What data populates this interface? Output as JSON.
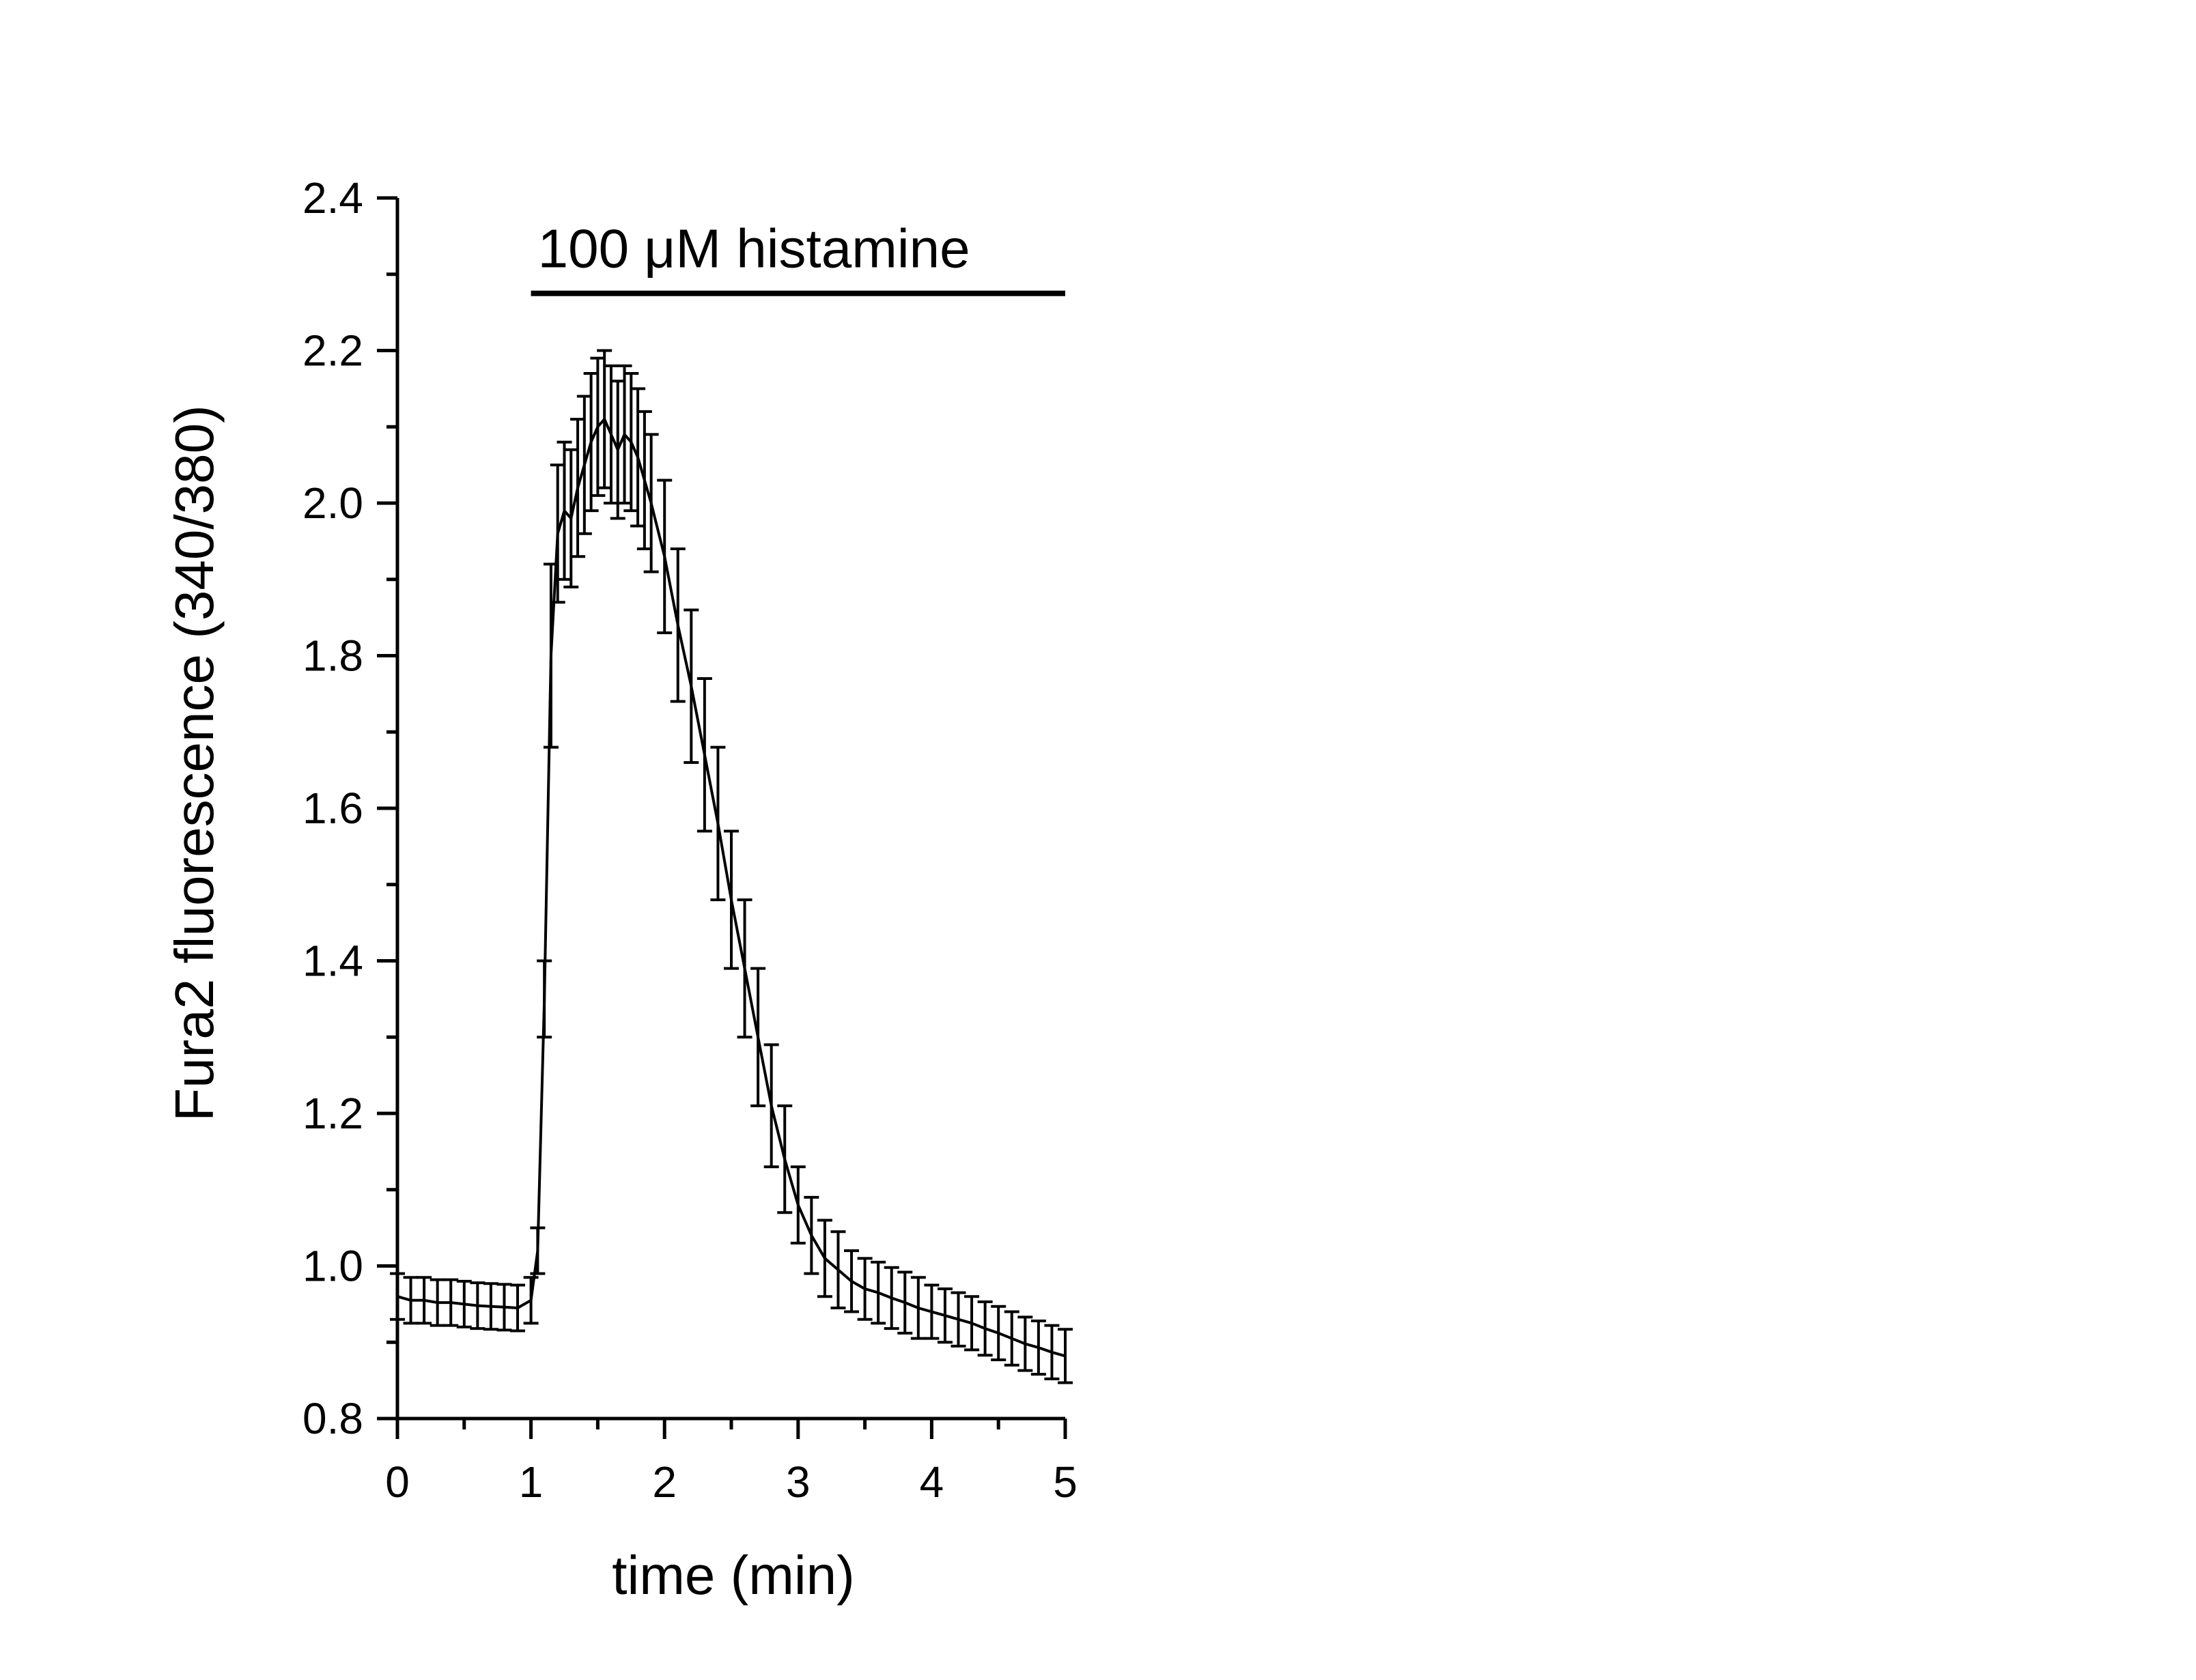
{
  "chart_data": {
    "type": "line",
    "xlabel": "time (min)",
    "ylabel": "Fura2 fluorescence (340/380)",
    "xlim": [
      0,
      5
    ],
    "ylim": [
      0.8,
      2.4
    ],
    "x_ticks": [
      "0",
      "1",
      "2",
      "3",
      "4",
      "5"
    ],
    "y_ticks": [
      "0.8",
      "1.0",
      "1.2",
      "1.4",
      "1.6",
      "1.8",
      "2.0",
      "2.2",
      "2.4"
    ],
    "grid": false,
    "annotation": {
      "text": "100 μM histamine",
      "bar_x": [
        1,
        5
      ],
      "bar_y": 2.275
    },
    "series": [
      {
        "x": [
          0,
          0.1,
          0.2,
          0.3,
          0.4,
          0.5,
          0.6,
          0.7,
          0.8,
          0.9,
          1.0,
          1.05,
          1.1,
          1.15,
          1.2,
          1.25,
          1.3,
          1.35,
          1.4,
          1.45,
          1.5,
          1.55,
          1.6,
          1.65,
          1.7,
          1.75,
          1.8,
          1.85,
          1.9,
          2.0,
          2.1,
          2.2,
          2.3,
          2.4,
          2.5,
          2.6,
          2.7,
          2.8,
          2.9,
          3.0,
          3.1,
          3.2,
          3.3,
          3.4,
          3.5,
          3.6,
          3.7,
          3.8,
          3.9,
          4.0,
          4.1,
          4.2,
          4.3,
          4.4,
          4.5,
          4.6,
          4.7,
          4.8,
          4.9,
          5.0
        ],
        "y": [
          0.96,
          0.955,
          0.955,
          0.952,
          0.952,
          0.95,
          0.948,
          0.947,
          0.946,
          0.945,
          0.955,
          1.02,
          1.35,
          1.8,
          1.96,
          1.99,
          1.98,
          2.02,
          2.05,
          2.08,
          2.1,
          2.11,
          2.09,
          2.07,
          2.09,
          2.08,
          2.06,
          2.03,
          2.0,
          1.93,
          1.84,
          1.76,
          1.67,
          1.58,
          1.48,
          1.39,
          1.3,
          1.21,
          1.14,
          1.08,
          1.04,
          1.01,
          0.995,
          0.98,
          0.97,
          0.965,
          0.958,
          0.952,
          0.945,
          0.94,
          0.935,
          0.93,
          0.925,
          0.918,
          0.912,
          0.905,
          0.898,
          0.893,
          0.887,
          0.882
        ],
        "error": [
          0.03,
          0.03,
          0.03,
          0.03,
          0.03,
          0.03,
          0.03,
          0.03,
          0.03,
          0.03,
          0.03,
          0.03,
          0.05,
          0.12,
          0.09,
          0.09,
          0.09,
          0.09,
          0.09,
          0.09,
          0.09,
          0.09,
          0.09,
          0.09,
          0.09,
          0.09,
          0.09,
          0.09,
          0.09,
          0.1,
          0.1,
          0.1,
          0.1,
          0.1,
          0.09,
          0.09,
          0.09,
          0.08,
          0.07,
          0.05,
          0.05,
          0.05,
          0.05,
          0.04,
          0.04,
          0.04,
          0.04,
          0.04,
          0.04,
          0.035,
          0.035,
          0.035,
          0.035,
          0.035,
          0.035,
          0.035,
          0.035,
          0.035,
          0.035,
          0.035
        ]
      }
    ]
  }
}
